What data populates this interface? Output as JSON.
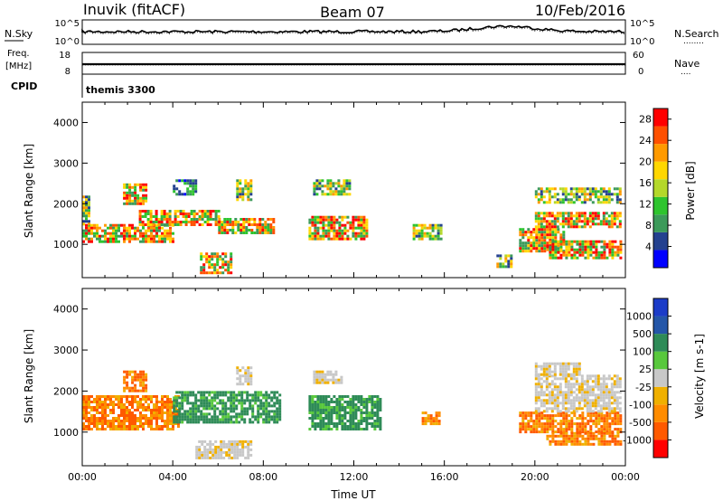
{
  "header": {
    "station": "Inuvik (fitACF)",
    "beam": "Beam 07",
    "date": "10/Feb/2016"
  },
  "noise_panel": {
    "left_label": "N.Sky",
    "left_ticks": [
      "10^5",
      "10^0"
    ],
    "right_ticks": [
      "10^5",
      "10^0"
    ],
    "right_label": "N.Search",
    "right_dots": "........"
  },
  "freq_panel": {
    "left_label_1": "Freq.",
    "left_label_2": "[MHz]",
    "left_ticks": [
      "18",
      "8"
    ],
    "right_ticks": [
      "60",
      "0"
    ],
    "right_label": "Nave",
    "right_dots": "...."
  },
  "cpid_panel": {
    "label": "CPID",
    "value": "themis 3300"
  },
  "colors": {
    "frame": "#000000",
    "power_scale": [
      "#0000ff",
      "#24418f",
      "#3c9a5a",
      "#2ec42e",
      "#b4d82a",
      "#ffd700",
      "#ff9a00",
      "#ff5000",
      "#ff0000"
    ],
    "velocity_scale": [
      "#ff0000",
      "#ff5a00",
      "#ff8c00",
      "#f0b000",
      "#c8c8c8",
      "#58c83c",
      "#2e8b57",
      "#2456a8",
      "#1c3cc8"
    ]
  },
  "chart_data": [
    {
      "type": "heatmap",
      "name": "Power",
      "xlabel": "Time UT",
      "ylabel": "Slant Range [km]",
      "x_ticks": [
        "00:00",
        "04:00",
        "08:00",
        "12:00",
        "16:00",
        "20:00",
        "00:00"
      ],
      "y_ticks": [
        "1000",
        "2000",
        "3000",
        "4000"
      ],
      "xlim_hours": [
        0,
        24
      ],
      "ylim_km": [
        180,
        4500
      ],
      "colorbar": {
        "label": "Power [dB]",
        "ticks": [
          "4",
          "8",
          "12",
          "16",
          "20",
          "24",
          "28"
        ],
        "range_db": [
          0,
          30
        ]
      },
      "regions": [
        {
          "t0": 0.0,
          "t1": 4.0,
          "r0": 1050,
          "r1": 1500,
          "level": "high"
        },
        {
          "t0": 0.0,
          "t1": 0.3,
          "r0": 1500,
          "r1": 2200,
          "level": "mid"
        },
        {
          "t0": 1.8,
          "t1": 2.8,
          "r0": 2000,
          "r1": 2500,
          "level": "high"
        },
        {
          "t0": 2.5,
          "t1": 6.0,
          "r0": 1500,
          "r1": 1850,
          "level": "high"
        },
        {
          "t0": 6.0,
          "t1": 8.5,
          "r0": 1300,
          "r1": 1650,
          "level": "high"
        },
        {
          "t0": 4.0,
          "t1": 5.0,
          "r0": 2200,
          "r1": 2600,
          "level": "low"
        },
        {
          "t0": 6.8,
          "t1": 7.4,
          "r0": 2100,
          "r1": 2600,
          "level": "mid"
        },
        {
          "t0": 5.2,
          "t1": 6.6,
          "r0": 300,
          "r1": 800,
          "level": "high"
        },
        {
          "t0": 10.2,
          "t1": 11.8,
          "r0": 2200,
          "r1": 2600,
          "level": "mid"
        },
        {
          "t0": 10.0,
          "t1": 12.6,
          "r0": 1100,
          "r1": 1700,
          "level": "high"
        },
        {
          "t0": 14.6,
          "t1": 15.8,
          "r0": 1100,
          "r1": 1500,
          "level": "mid"
        },
        {
          "t0": 18.3,
          "t1": 18.9,
          "r0": 450,
          "r1": 750,
          "level": "mid"
        },
        {
          "t0": 19.3,
          "t1": 21.3,
          "r0": 850,
          "r1": 1400,
          "level": "high"
        },
        {
          "t0": 20.5,
          "t1": 23.8,
          "r0": 650,
          "r1": 1100,
          "level": "high"
        },
        {
          "t0": 20.0,
          "t1": 23.8,
          "r0": 1400,
          "r1": 1800,
          "level": "high"
        },
        {
          "t0": 20.0,
          "t1": 23.8,
          "r0": 2000,
          "r1": 2400,
          "level": "mid"
        }
      ]
    },
    {
      "type": "heatmap",
      "name": "Velocity",
      "xlabel": "Time UT",
      "ylabel": "Slant Range [km]",
      "x_ticks": [
        "00:00",
        "04:00",
        "08:00",
        "12:00",
        "16:00",
        "20:00",
        "00:00"
      ],
      "y_ticks": [
        "1000",
        "2000",
        "3000",
        "4000"
      ],
      "xlim_hours": [
        0,
        24
      ],
      "ylim_km": [
        180,
        4500
      ],
      "colorbar": {
        "label": "Velocity [m s-1]",
        "ticks": [
          "1000",
          "500",
          "100",
          "25",
          "-25",
          "-100",
          "-500",
          "-1000"
        ],
        "range_m_s": [
          -1000,
          1000
        ]
      },
      "regions": [
        {
          "t0": 0.0,
          "t1": 4.2,
          "r0": 1050,
          "r1": 1900,
          "velocity": -300
        },
        {
          "t0": 1.8,
          "t1": 2.8,
          "r0": 2000,
          "r1": 2500,
          "velocity": -300
        },
        {
          "t0": 4.0,
          "t1": 8.7,
          "r0": 1250,
          "r1": 2000,
          "velocity": 300
        },
        {
          "t0": 5.0,
          "t1": 7.5,
          "r0": 400,
          "r1": 800,
          "velocity": 0
        },
        {
          "t0": 6.8,
          "t1": 7.4,
          "r0": 2200,
          "r1": 2600,
          "velocity": 0
        },
        {
          "t0": 10.2,
          "t1": 11.5,
          "r0": 2200,
          "r1": 2500,
          "velocity": 0
        },
        {
          "t0": 10.0,
          "t1": 13.2,
          "r0": 1100,
          "r1": 1900,
          "velocity": 300
        },
        {
          "t0": 15.0,
          "t1": 15.8,
          "r0": 1200,
          "r1": 1500,
          "velocity": -300
        },
        {
          "t0": 19.3,
          "t1": 23.8,
          "r0": 1000,
          "r1": 1500,
          "velocity": -300
        },
        {
          "t0": 20.5,
          "t1": 23.8,
          "r0": 700,
          "r1": 1000,
          "velocity": -300
        },
        {
          "t0": 20.0,
          "t1": 23.8,
          "r0": 1500,
          "r1": 2400,
          "velocity": 0
        },
        {
          "t0": 20.0,
          "t1": 22.0,
          "r0": 2400,
          "r1": 2700,
          "velocity": 0
        }
      ]
    }
  ]
}
